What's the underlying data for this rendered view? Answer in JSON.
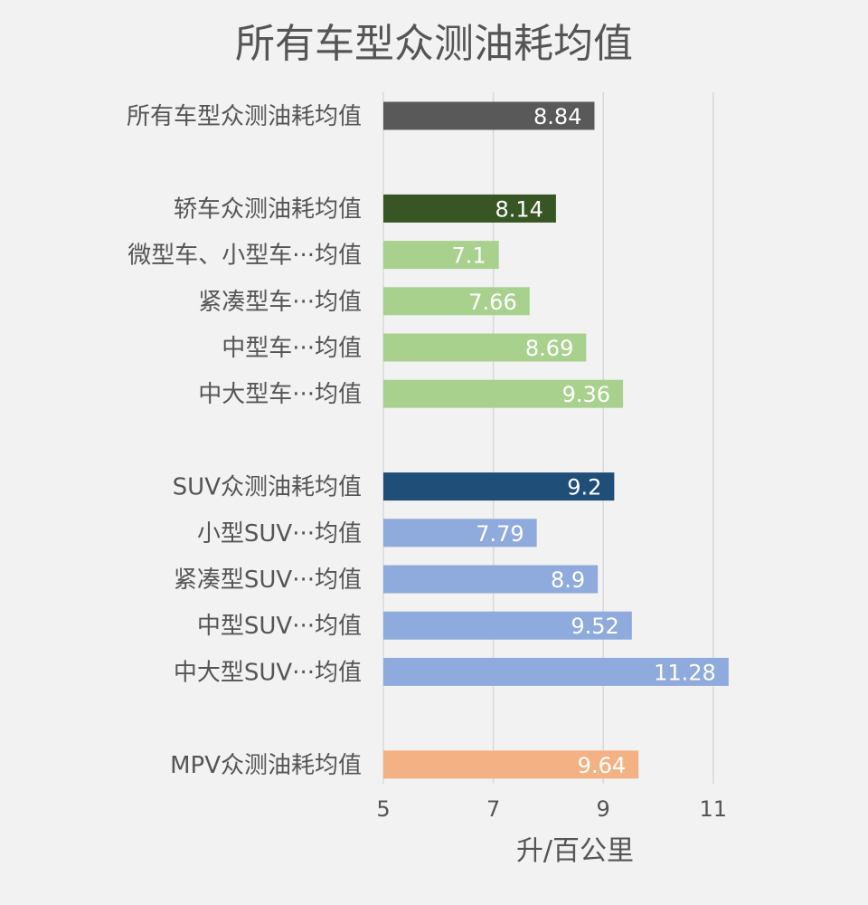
{
  "chart_data": {
    "type": "bar",
    "orientation": "horizontal",
    "title": "所有车型众测油耗均值",
    "xlabel": "升/百公里",
    "ylabel": "",
    "xlim": [
      5,
      11.5
    ],
    "xticks": [
      5,
      7,
      9,
      11
    ],
    "grid": "vertical",
    "categories": [
      "所有车型众测油耗均值",
      "",
      "轿车众测油耗均值",
      "微型车、小型车···均值",
      "紧凑型车···均值",
      "中型车···均值",
      "中大型车···均值",
      "",
      "SUV众测油耗均值",
      "小型SUV···均值",
      "紧凑型SUV···均值",
      "中型SUV···均值",
      "中大型SUV···均值",
      "",
      "MPV众测油耗均值"
    ],
    "values": [
      8.84,
      null,
      8.14,
      7.1,
      7.66,
      8.69,
      9.36,
      null,
      9.2,
      7.79,
      8.9,
      9.52,
      11.28,
      null,
      9.64
    ],
    "data_labels": [
      "8.84",
      "",
      "8.14",
      "7.1",
      "7.66",
      "8.69",
      "9.36",
      "",
      "9.2",
      "7.79",
      "8.9",
      "9.52",
      "11.28",
      "",
      "9.64"
    ],
    "colors": [
      "#595959",
      null,
      "#375623",
      "#a9d18e",
      "#a9d18e",
      "#a9d18e",
      "#a9d18e",
      null,
      "#1f4e79",
      "#8faadc",
      "#8faadc",
      "#8faadc",
      "#8faadc",
      null,
      "#f4b183"
    ]
  },
  "colors": {
    "background": "#f2f2f2",
    "text": "#555555",
    "grid": "#d9d9d9",
    "value_label": "#ffffff"
  }
}
